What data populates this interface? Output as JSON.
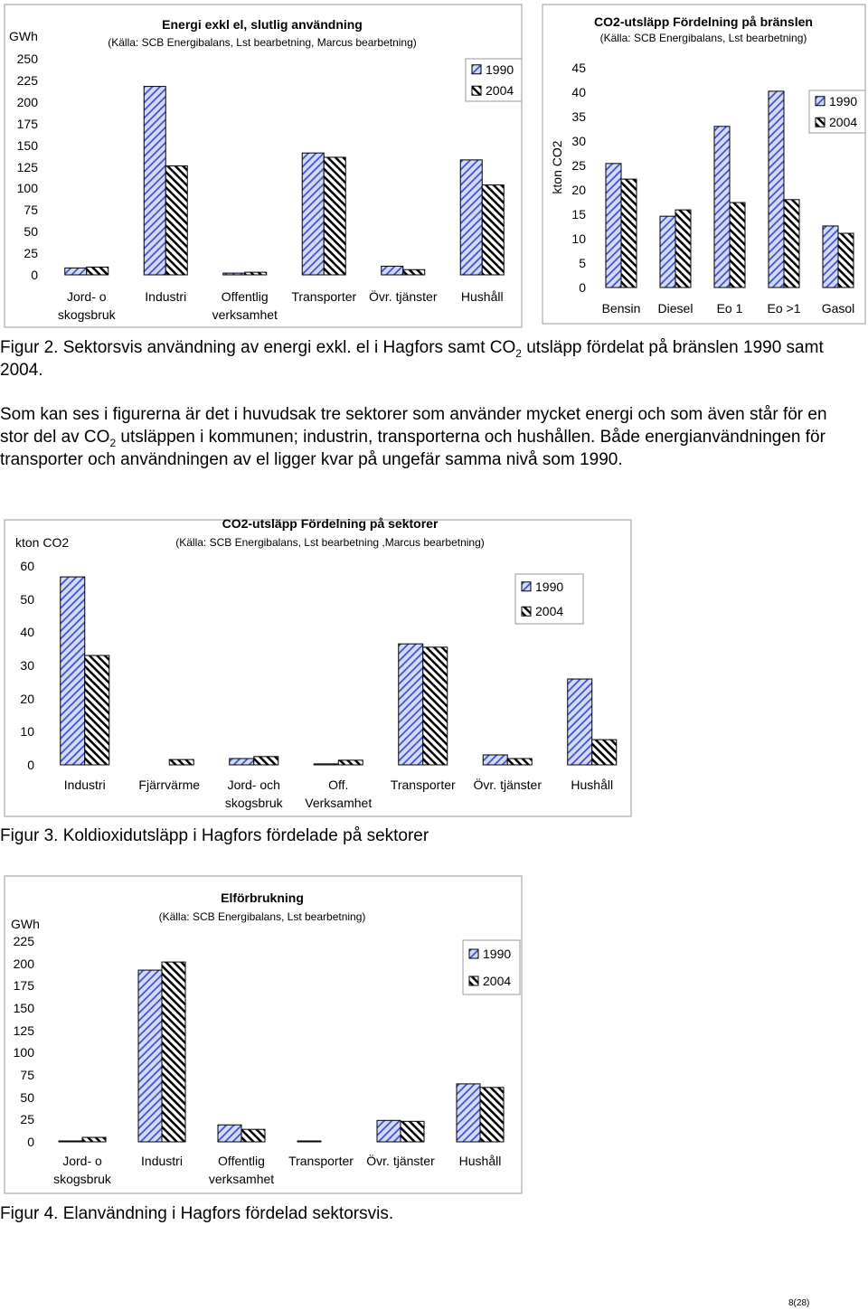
{
  "chart_data": [
    {
      "type": "bar",
      "title": "Energi exkl el, slutlig användning",
      "subtitle": "(Källa: SCB Energibalans, Lst bearbetning, Marcus bearbetning)",
      "y_label": "GWh",
      "categories": [
        "Jord- o\nskogsbruk",
        "Industri",
        "Offentlig\nverksamhet",
        "Transporter",
        "Övr. tjänster",
        "Hushåll"
      ],
      "series": [
        {
          "name": "1990",
          "color": "#3344cc",
          "values": [
            8,
            218,
            2,
            141,
            10,
            133
          ]
        },
        {
          "name": "2004",
          "color": "#000000",
          "values": [
            9,
            126,
            3,
            136,
            6,
            104
          ]
        }
      ],
      "ylim": [
        0,
        250
      ],
      "yticks": [
        0,
        25,
        50,
        75,
        100,
        125,
        150,
        175,
        200,
        225,
        250
      ],
      "grid": false,
      "legend": "upper right"
    },
    {
      "type": "bar",
      "title": "CO2-utsläpp Fördelning på bränslen",
      "subtitle": "(Källa: SCB Energibalans, Lst bearbetning)",
      "y_label": "kton CO2",
      "categories": [
        "Bensin",
        "Diesel",
        "Eo 1",
        "Eo >1",
        "Gasol"
      ],
      "series": [
        {
          "name": "1990",
          "color": "#3344cc",
          "values": [
            25.4,
            14.6,
            33,
            40.2,
            12.6
          ]
        },
        {
          "name": "2004",
          "color": "#000000",
          "values": [
            22.2,
            15.9,
            17.4,
            18,
            11.1
          ]
        }
      ],
      "ylim": [
        0,
        45
      ],
      "yticks": [
        0,
        5,
        10,
        15,
        20,
        25,
        30,
        35,
        40,
        45
      ],
      "grid": false,
      "legend": "upper right"
    },
    {
      "type": "bar",
      "title": "CO2-utsläpp Fördelning på sektorer",
      "subtitle": "(Källa: SCB Energibalans, Lst bearbetning ,Marcus bearbetning)",
      "y_label": "kton CO2",
      "categories": [
        "Industri",
        "Fjärrvärme",
        "Jord- och\nskogsbruk",
        "Off.\nVerksamhet",
        "Transporter",
        "Övr. tjänster",
        "Hushåll"
      ],
      "series": [
        {
          "name": "1990",
          "color": "#3344cc",
          "values": [
            56.7,
            0,
            1.9,
            0.3,
            36.5,
            3,
            25.9
          ]
        },
        {
          "name": "2004",
          "color": "#000000",
          "values": [
            33,
            1.6,
            2.5,
            1.4,
            35.5,
            1.9,
            7.6
          ]
        }
      ],
      "ylim": [
        0,
        60
      ],
      "yticks": [
        0,
        10,
        20,
        30,
        40,
        50,
        60
      ],
      "grid": false,
      "legend": "upper right"
    },
    {
      "type": "bar",
      "title": "Elförbrukning",
      "subtitle": "(Källa: SCB Energibalans, Lst bearbetning)",
      "y_label": "GWh",
      "categories": [
        "Jord- o\nskogsbruk",
        "Industri",
        "Offentlig\nverksamhet",
        "Transporter",
        "Övr. tjänster",
        "Hushåll"
      ],
      "series": [
        {
          "name": "1990",
          "color": "#3344cc",
          "values": [
            1,
            192.5,
            19,
            1,
            24,
            65
          ]
        },
        {
          "name": "2004",
          "color": "#000000",
          "values": [
            5,
            201.6,
            14,
            0,
            23,
            61
          ]
        }
      ],
      "ylim": [
        0,
        225
      ],
      "yticks": [
        0,
        25,
        50,
        75,
        100,
        125,
        150,
        175,
        200,
        225
      ],
      "grid": false,
      "legend": "upper right"
    }
  ],
  "figure_2_caption": {
    "before": "Figur 2. Sektorsvis användning av energi exkl. el i Hagfors samt CO",
    "sub": "2",
    "after": " utsläpp fördelat på bränslen 1990 samt 2004."
  },
  "paragraph": {
    "before": "Som kan ses i figurerna är det i huvudsak tre sektorer som använder mycket energi och som även står för en stor del av CO",
    "sub": "2",
    "after": " utsläppen i kommunen; industrin, transporterna och hushållen. Både energianvändningen för transporter och användningen av el ligger kvar på ungefär samma nivå som 1990."
  },
  "figure_3_caption": "Figur 3. Koldioxidutsläpp i Hagfors fördelade på sektorer",
  "figure_4_caption": "Figur 4. Elanvändning i Hagfors fördelad sektorsvis.",
  "page_number": "8(28)"
}
